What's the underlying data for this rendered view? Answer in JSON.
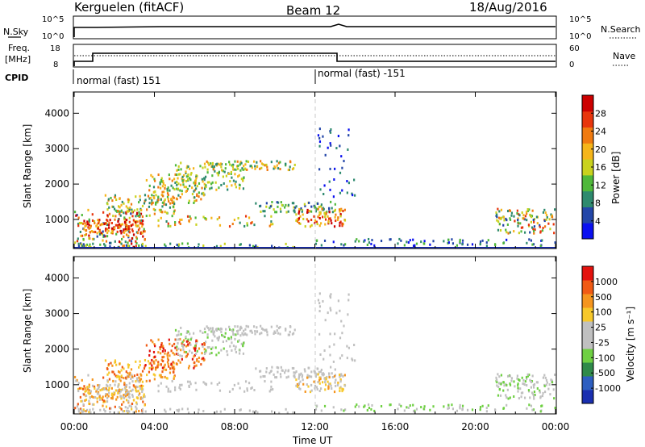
{
  "header": {
    "station": "Kerguelen (fitACF)",
    "beam": "Beam 12",
    "date": "18/Aug/2016"
  },
  "top_panels": {
    "nsky_label": "N.Sky",
    "nsky_ticks": [
      "10^5",
      "10^0"
    ],
    "nsearch_label": "N.Search",
    "nsearch_ticks": [
      "10^5",
      "10^0"
    ],
    "freq_label": "Freq.",
    "freq_unit": "[MHz]",
    "freq_ticks": [
      "18",
      "8"
    ],
    "nave_label": "Nave",
    "nave_ticks": [
      "60",
      "0"
    ],
    "cpid_label": "CPID",
    "cpid_segments": [
      "normal (fast) 151",
      "normal (fast) -151"
    ]
  },
  "colors": {
    "power_scale": [
      "#0a10f0",
      "#2346a8",
      "#2e8a6e",
      "#4fb83a",
      "#c9d21e",
      "#f5b51a",
      "#f07a10",
      "#e8350c",
      "#cc0000"
    ],
    "velocity_scale": [
      "#e3120e",
      "#f05a14",
      "#f5951e",
      "#f7c82a",
      "#c0c0c0",
      "#c0c0c0",
      "#6fd043",
      "#2f8a4a",
      "#2d5ec0",
      "#1a2fb0"
    ]
  },
  "chart_data": [
    {
      "type": "heatmap",
      "ylabel": "Slant Range [km]",
      "xlabel": "",
      "x_ticks": [
        "00:00",
        "04:00",
        "08:00",
        "12:00",
        "16:00",
        "20:00",
        "00:00"
      ],
      "y_ticks": [
        "1000",
        "2000",
        "3000",
        "4000"
      ],
      "ylim": [
        180,
        4600
      ],
      "xlim_hours": [
        0,
        24
      ],
      "colorbar_label": "Power [dB]",
      "colorbar_ticks": [
        "4",
        "8",
        "12",
        "16",
        "20",
        "24",
        "28"
      ],
      "colorbar_range": [
        0,
        30
      ]
    },
    {
      "type": "heatmap",
      "ylabel": "Slant Range [km]",
      "xlabel": "Time UT",
      "x_ticks": [
        "00:00",
        "04:00",
        "08:00",
        "12:00",
        "16:00",
        "20:00",
        "00:00"
      ],
      "y_ticks": [
        "1000",
        "2000",
        "3000",
        "4000"
      ],
      "ylim": [
        180,
        4600
      ],
      "xlim_hours": [
        0,
        24
      ],
      "colorbar_label": "Velocity [m s⁻¹]",
      "colorbar_ticks": [
        "1000",
        "500",
        "100",
        "25",
        "-25",
        "-100",
        "-500",
        "-1000"
      ]
    }
  ]
}
